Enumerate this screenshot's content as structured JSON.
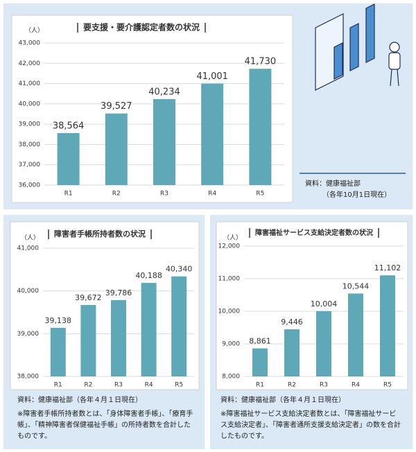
{
  "chart_data": [
    {
      "type": "bar",
      "title": "要支援・要介護認定者数の状況",
      "ylabel": "（人）",
      "color": "#5fa8b8",
      "grid": true,
      "categories": [
        "R1",
        "R2",
        "R3",
        "R4",
        "R5"
      ],
      "values": [
        38564,
        39527,
        40234,
        41001,
        41730
      ],
      "value_labels": [
        "38,564",
        "39,527",
        "40,234",
        "41,001",
        "41,730"
      ],
      "ylim": [
        36000,
        43000
      ],
      "yticks": [
        {
          "value": 36000,
          "label": "36,000"
        },
        {
          "value": 37000,
          "label": "37,000"
        },
        {
          "value": 38000,
          "label": "38,000"
        },
        {
          "value": 39000,
          "label": "39,000"
        },
        {
          "value": 40000,
          "label": "40,000"
        },
        {
          "value": 41000,
          "label": "41,000"
        },
        {
          "value": 42000,
          "label": "42,000"
        },
        {
          "value": 43000,
          "label": "43,000"
        }
      ],
      "source": [
        "資料：健康福祉部",
        "（各年10月1日現在）"
      ]
    },
    {
      "type": "bar",
      "title": "障害者手帳所持者数の状況",
      "ylabel": "（人）",
      "color": "#5fa8b8",
      "grid": true,
      "categories": [
        "R1",
        "R2",
        "R3",
        "R4",
        "R5"
      ],
      "values": [
        39138,
        39672,
        39786,
        40188,
        40340
      ],
      "value_labels": [
        "39,138",
        "39,672",
        "39,786",
        "40,188",
        "40,340"
      ],
      "ylim": [
        38000,
        41000
      ],
      "yticks": [
        {
          "value": 38000,
          "label": "38,000"
        },
        {
          "value": 39000,
          "label": "39,000"
        },
        {
          "value": 40000,
          "label": "40,000"
        },
        {
          "value": 41000,
          "label": "41,000"
        }
      ],
      "source": "資料：健康福祉部（各年４月１日現在）",
      "note": "※障害者手帳所持者数とは、「身体障害者手帳」、「療育手帳」、「精神障害者保健福祉手帳」の所持者数を合計したものです。"
    },
    {
      "type": "bar",
      "title": "障害福祉サービス支給決定者数の状況",
      "ylabel": "（人）",
      "color": "#5fa8b8",
      "grid": true,
      "categories": [
        "R1",
        "R2",
        "R3",
        "R4",
        "R5"
      ],
      "values": [
        8861,
        9446,
        10004,
        10544,
        11102
      ],
      "value_labels": [
        "8,861",
        "9,446",
        "10,004",
        "10,544",
        "11,102"
      ],
      "ylim": [
        8000,
        12000
      ],
      "yticks": [
        {
          "value": 8000,
          "label": "8,000"
        },
        {
          "value": 9000,
          "label": "9,000"
        },
        {
          "value": 10000,
          "label": "10,000"
        },
        {
          "value": 11000,
          "label": "11,000"
        },
        {
          "value": 12000,
          "label": "12,000"
        }
      ],
      "source": "資料：健康福祉部（各年４月１日現在）",
      "note": "※障害福祉サービス支給決定者数とは、「障害福祉サービス支給決定者」、「障害者通所支援支給決定者」の数を合計したものです。"
    }
  ]
}
